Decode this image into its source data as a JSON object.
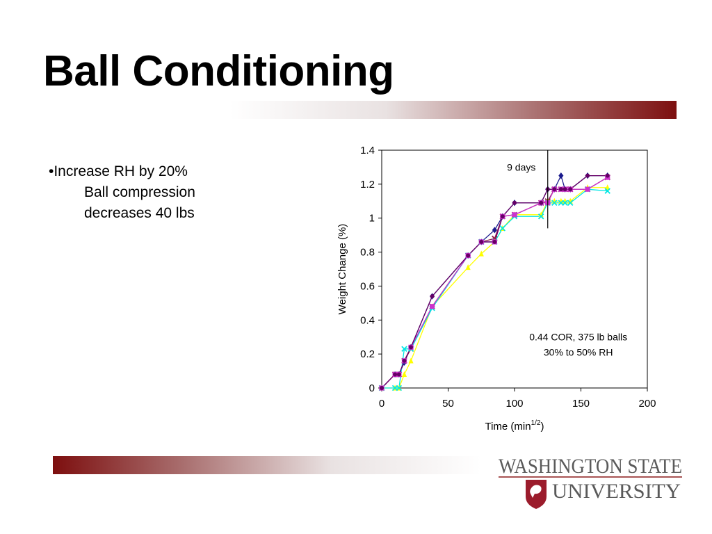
{
  "slide": {
    "title": "Ball Conditioning",
    "bullet": {
      "line1": "•Increase RH by 20%",
      "line2": "Ball compression",
      "line3": "decreases 40 lbs"
    }
  },
  "logo": {
    "line1": "WASHINGTON STATE",
    "line2": "UNIVERSITY"
  },
  "colors": {
    "accent": "#7d0f0f",
    "series": [
      "#1a1a8c",
      "#8b1a4a",
      "#ffff00",
      "#00e5e5",
      "#cc33cc",
      "#660066"
    ]
  },
  "chart_data": {
    "type": "scatter",
    "title": "",
    "xlabel": "Time (min",
    "xlabel_superscript": "1/2",
    "xlabel_close": ")",
    "ylabel": "Weight Change (%)",
    "xlim": [
      0,
      200
    ],
    "ylim": [
      0,
      1.4
    ],
    "xticks": [
      0,
      50,
      100,
      150,
      200
    ],
    "yticks": [
      0,
      0.2,
      0.4,
      0.6,
      0.8,
      1,
      1.2,
      1.4
    ],
    "xtick_labels": [
      "0",
      "50",
      "100",
      "150",
      "200"
    ],
    "ytick_labels": [
      "0",
      "0.2",
      "0.4",
      "0.6",
      "0.8",
      "1",
      "1.2",
      "1.4"
    ],
    "grid": false,
    "legend": "none",
    "x": [
      0,
      10,
      13,
      17,
      22,
      38,
      65,
      75,
      85,
      91,
      100,
      120,
      125,
      130,
      135,
      138,
      142,
      155,
      170
    ],
    "series": [
      {
        "marker": "diamond",
        "values": [
          0,
          0.08,
          0.08,
          0.15,
          0.24,
          0.54,
          0.78,
          0.86,
          0.93,
          1.01,
          1.09,
          1.09,
          1.17,
          1.17,
          1.25,
          1.17,
          1.17,
          1.25,
          1.25
        ]
      },
      {
        "marker": "x",
        "values": [
          0,
          0.08,
          0.08,
          0.16,
          0.23,
          0.48,
          0.78,
          0.86,
          0.88,
          1.01,
          1.02,
          1.09,
          1.1,
          1.17,
          1.17,
          1.17,
          1.17,
          1.17,
          1.24
        ]
      },
      {
        "marker": "triangle",
        "values": [
          0,
          0,
          0,
          0.08,
          0.16,
          0.48,
          0.71,
          0.79,
          0.86,
          0.94,
          1.02,
          1.02,
          1.1,
          1.1,
          1.1,
          1.1,
          1.1,
          1.18,
          1.18
        ]
      },
      {
        "marker": "x",
        "values": [
          0,
          0,
          0,
          0.23,
          0.23,
          0.47,
          0.78,
          0.86,
          0.86,
          0.94,
          1.01,
          1.01,
          1.09,
          1.09,
          1.09,
          1.09,
          1.09,
          1.17,
          1.16
        ]
      },
      {
        "marker": "square",
        "values": [
          0,
          0.08,
          0.08,
          0.16,
          0.24,
          0.48,
          0.78,
          0.86,
          0.86,
          1.01,
          1.02,
          1.09,
          1.09,
          1.17,
          1.17,
          1.17,
          1.17,
          1.17,
          1.24
        ]
      },
      {
        "marker": "circle",
        "values": [
          0,
          0.08,
          0.08,
          0.16,
          0.24,
          0.54,
          0.78,
          0.86,
          0.86,
          1.01,
          1.09,
          1.09,
          1.17,
          1.17,
          1.17,
          1.17,
          1.17,
          1.25,
          1.25
        ]
      }
    ],
    "annotations": [
      {
        "text": "9 days",
        "x": 125,
        "y": 1.3
      },
      {
        "text": "0.44 COR, 375 lb balls",
        "x": 148,
        "y": 0.3
      },
      {
        "text": "30% to 50% RH",
        "x": 148,
        "y": 0.21
      }
    ],
    "vline": {
      "x": 125,
      "y_from": 0.94,
      "y_to": 1.4
    }
  }
}
